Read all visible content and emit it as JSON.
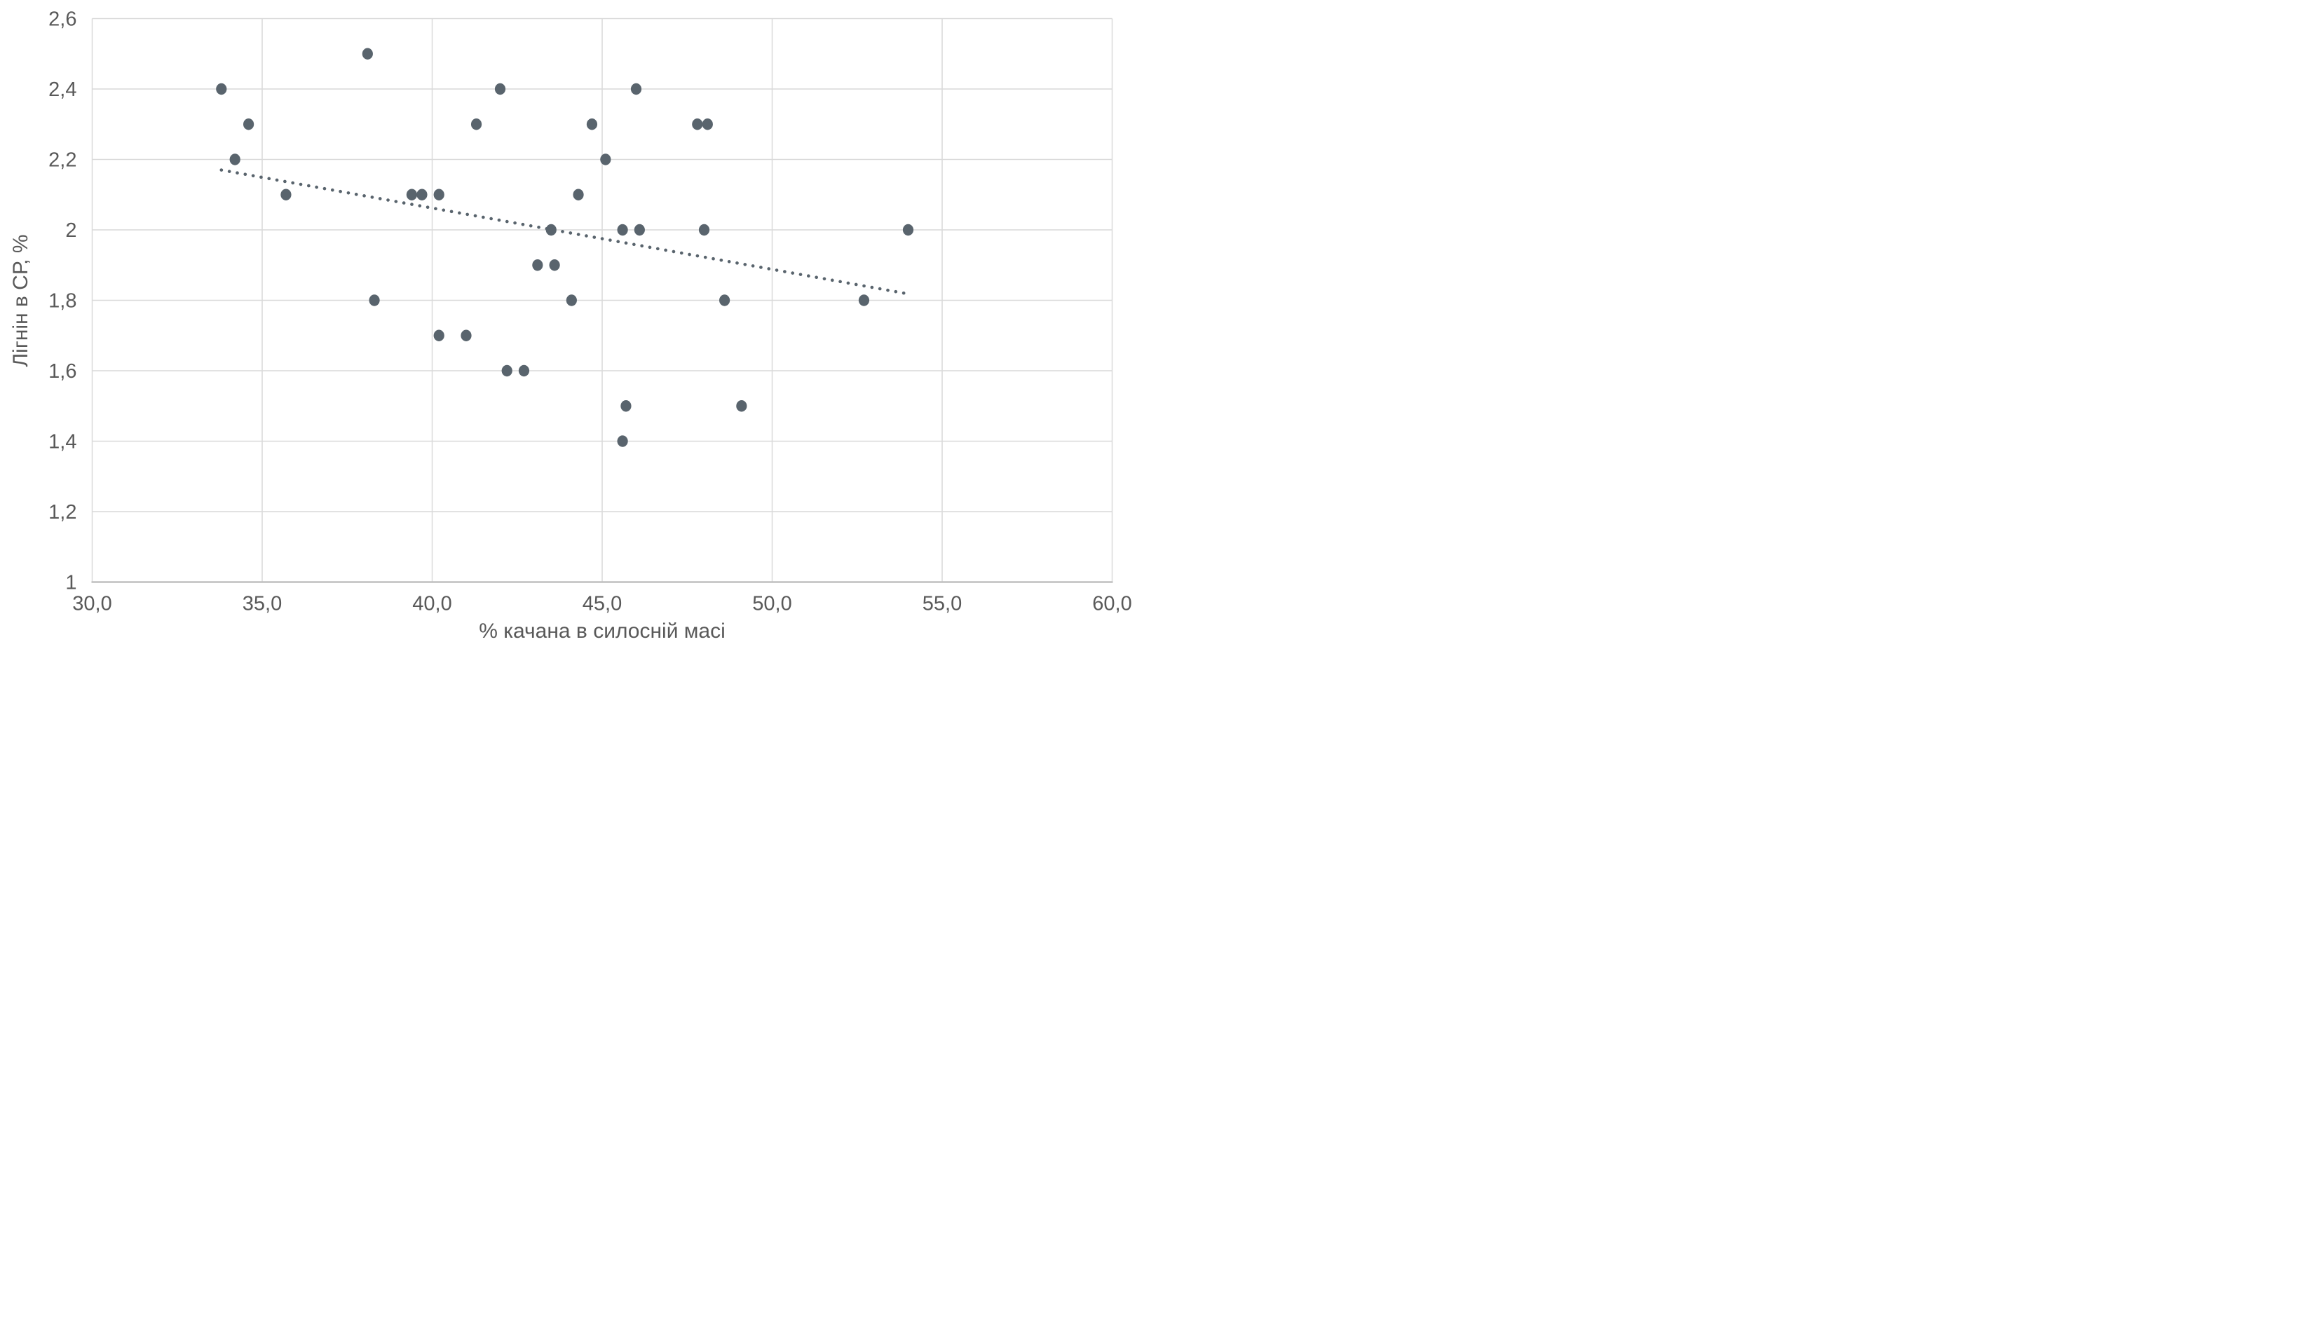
{
  "chart_data": {
    "type": "scatter",
    "title": "",
    "xlabel": "% качана в силосній масі",
    "ylabel": "Лігнін в СР, %",
    "xlim": [
      30,
      60
    ],
    "ylim": [
      1,
      2.6
    ],
    "grid": true,
    "legend": false,
    "xticks": [
      30,
      35,
      40,
      45,
      50,
      55,
      60
    ],
    "xtick_labels": [
      "30,0",
      "35,0",
      "40,0",
      "45,0",
      "50,0",
      "55,0",
      "60,0"
    ],
    "yticks": [
      1,
      1.2,
      1.4,
      1.6,
      1.8,
      2,
      2.2,
      2.4,
      2.6
    ],
    "ytick_labels": [
      "1",
      "1,2",
      "1,4",
      "1,6",
      "1,8",
      "2",
      "2,2",
      "2,4",
      "2,6"
    ],
    "points": [
      [
        33.8,
        2.4
      ],
      [
        34.2,
        2.2
      ],
      [
        34.6,
        2.3
      ],
      [
        35.7,
        2.1
      ],
      [
        38.1,
        2.5
      ],
      [
        38.3,
        1.8
      ],
      [
        39.4,
        2.1
      ],
      [
        39.7,
        2.1
      ],
      [
        40.2,
        2.1
      ],
      [
        40.2,
        1.7
      ],
      [
        41.0,
        1.7
      ],
      [
        41.3,
        2.3
      ],
      [
        42.0,
        2.4
      ],
      [
        42.2,
        1.6
      ],
      [
        42.7,
        1.6
      ],
      [
        43.1,
        1.9
      ],
      [
        43.6,
        1.9
      ],
      [
        43.5,
        2.0
      ],
      [
        44.1,
        1.8
      ],
      [
        44.3,
        2.1
      ],
      [
        44.7,
        2.3
      ],
      [
        45.1,
        2.2
      ],
      [
        45.6,
        1.4
      ],
      [
        45.6,
        2.0
      ],
      [
        45.7,
        1.5
      ],
      [
        46.0,
        2.4
      ],
      [
        46.1,
        2.0
      ],
      [
        47.8,
        2.3
      ],
      [
        48.0,
        2.0
      ],
      [
        48.1,
        2.3
      ],
      [
        48.6,
        1.8
      ],
      [
        49.1,
        1.5
      ],
      [
        52.7,
        1.8
      ],
      [
        54.0,
        2.0
      ]
    ],
    "trendline": {
      "style": "dotted",
      "x1": 33.8,
      "y1": 2.17,
      "x2": 53.9,
      "y2": 1.82
    },
    "colors": {
      "background": "#ffffff",
      "marker": "#59646d",
      "trend": "#59646d",
      "grid": "#d9d9d9",
      "axis": "#bfbfbf",
      "tick_text": "#595959"
    }
  }
}
